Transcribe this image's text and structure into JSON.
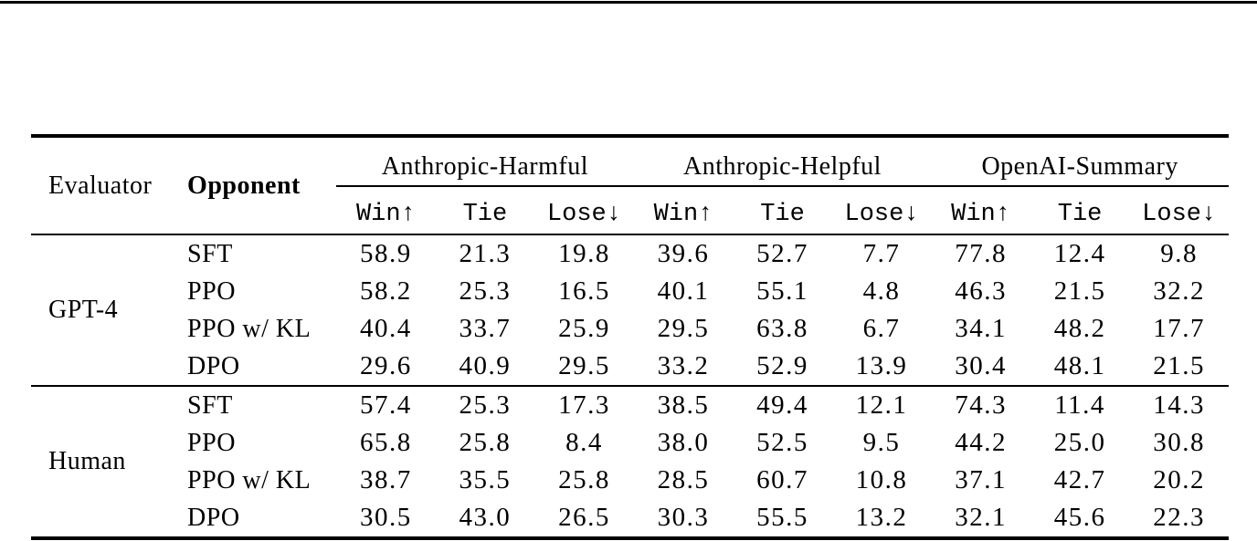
{
  "colors": {
    "text": "#000000",
    "rule": "#000000",
    "background": "#ffffff"
  },
  "table": {
    "headers": {
      "evaluator": "Evaluator",
      "opponent": "Opponent"
    },
    "groups": [
      "Anthropic-Harmful",
      "Anthropic-Helpful",
      "OpenAI-Summary"
    ],
    "metrics": [
      "Win↑",
      "Tie",
      "Lose↓"
    ],
    "blocks": [
      {
        "evaluator": "GPT-4",
        "rows": [
          {
            "opponent": "SFT",
            "values": [
              "58.9",
              "21.3",
              "19.8",
              "39.6",
              "52.7",
              "7.7",
              "77.8",
              "12.4",
              "9.8"
            ]
          },
          {
            "opponent": "PPO",
            "values": [
              "58.2",
              "25.3",
              "16.5",
              "40.1",
              "55.1",
              "4.8",
              "46.3",
              "21.5",
              "32.2"
            ]
          },
          {
            "opponent": "PPO w/ KL",
            "values": [
              "40.4",
              "33.7",
              "25.9",
              "29.5",
              "63.8",
              "6.7",
              "34.1",
              "48.2",
              "17.7"
            ]
          },
          {
            "opponent": "DPO",
            "values": [
              "29.6",
              "40.9",
              "29.5",
              "33.2",
              "52.9",
              "13.9",
              "30.4",
              "48.1",
              "21.5"
            ]
          }
        ]
      },
      {
        "evaluator": "Human",
        "rows": [
          {
            "opponent": "SFT",
            "values": [
              "57.4",
              "25.3",
              "17.3",
              "38.5",
              "49.4",
              "12.1",
              "74.3",
              "11.4",
              "14.3"
            ]
          },
          {
            "opponent": "PPO",
            "values": [
              "65.8",
              "25.8",
              "8.4",
              "38.0",
              "52.5",
              "9.5",
              "44.2",
              "25.0",
              "30.8"
            ]
          },
          {
            "opponent": "PPO w/ KL",
            "values": [
              "38.7",
              "35.5",
              "25.8",
              "28.5",
              "60.7",
              "10.8",
              "37.1",
              "42.7",
              "20.2"
            ]
          },
          {
            "opponent": "DPO",
            "values": [
              "30.5",
              "43.0",
              "26.5",
              "30.3",
              "55.5",
              "13.2",
              "32.1",
              "45.6",
              "22.3"
            ]
          }
        ]
      }
    ]
  }
}
